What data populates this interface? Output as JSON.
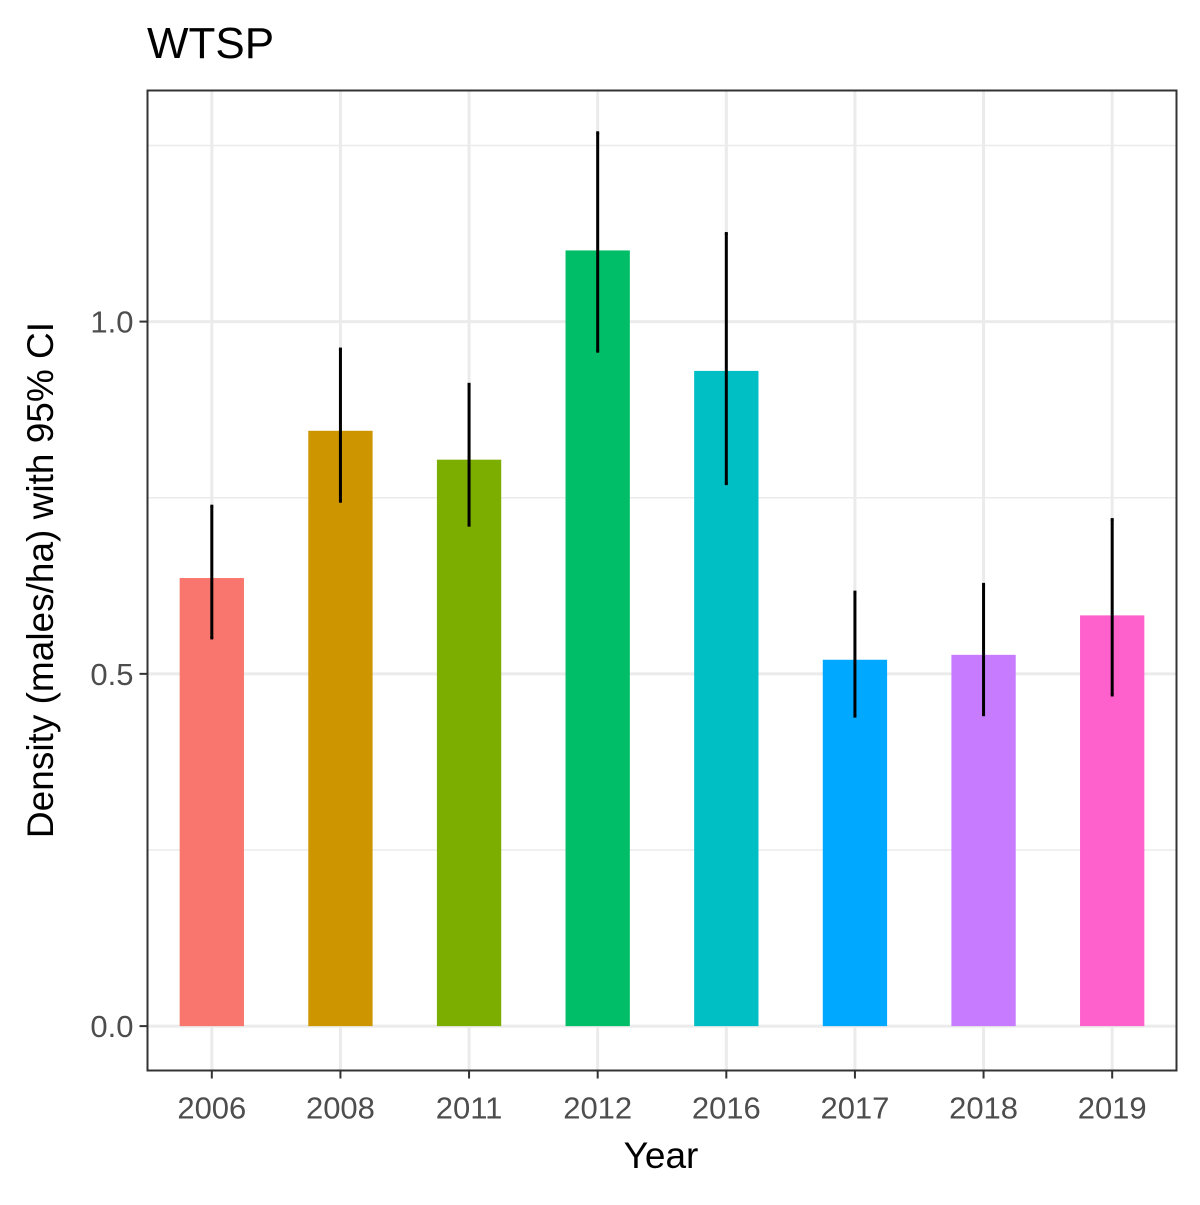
{
  "chart_data": {
    "type": "bar",
    "title": "WTSP",
    "xlabel": "Year",
    "ylabel": "Density (males/ha) with 95% CI",
    "categories": [
      "2006",
      "2008",
      "2011",
      "2012",
      "2016",
      "2017",
      "2018",
      "2019"
    ],
    "values": [
      0.636,
      0.845,
      0.804,
      1.101,
      0.93,
      0.52,
      0.527,
      0.583
    ],
    "ci_lower": [
      0.551,
      0.745,
      0.711,
      0.958,
      0.77,
      0.44,
      0.442,
      0.47
    ],
    "ci_upper": [
      0.738,
      0.961,
      0.911,
      1.268,
      1.125,
      0.616,
      0.627,
      0.719
    ],
    "colors": [
      "#F8766D",
      "#CD9600",
      "#7CAE00",
      "#00BE67",
      "#00BFC4",
      "#00A9FF",
      "#C77CFF",
      "#FF61CC"
    ],
    "ylim": [
      -0.063,
      1.328
    ],
    "yticks": [
      0.0,
      0.5,
      1.0
    ],
    "ytick_labels": [
      "0.0",
      "0.5",
      "1.0"
    ],
    "y_minor_gridlines": [
      0.25,
      0.75,
      1.25
    ],
    "grid": true,
    "legend": "none"
  }
}
